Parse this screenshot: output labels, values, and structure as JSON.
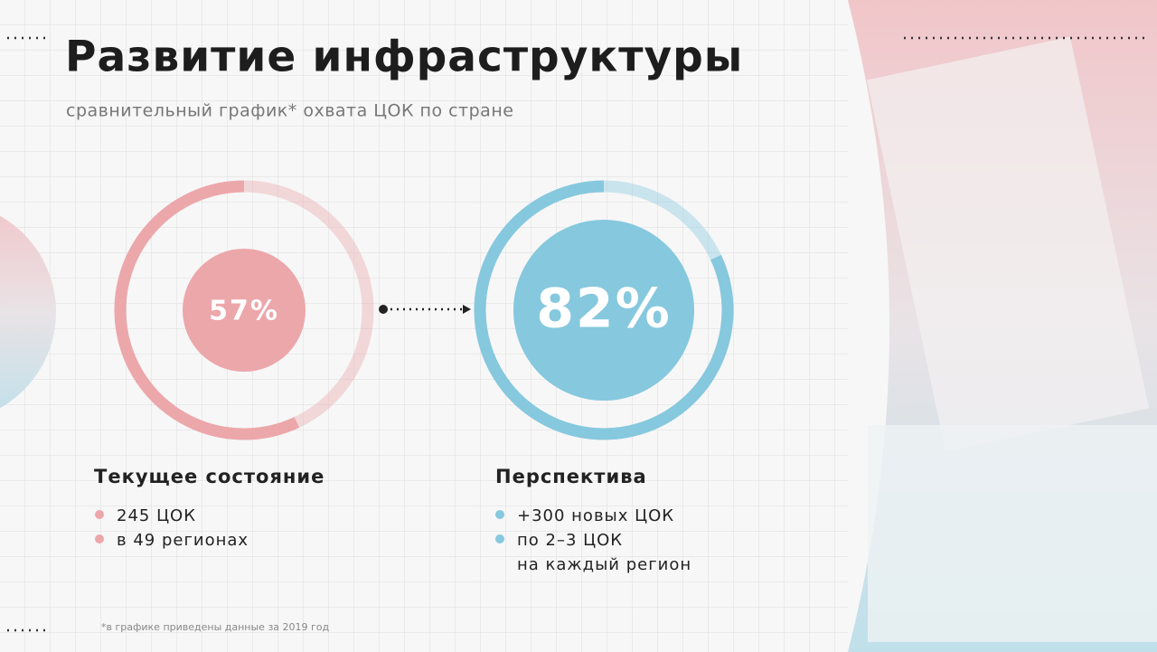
{
  "title": "Развитие инфраструктуры",
  "subtitle": "сравнительный график* охвата ЦОК по стране",
  "chart_data": [
    {
      "type": "donut",
      "values": [
        57
      ],
      "value_labels": [
        "57%"
      ],
      "ylim": [
        0,
        100
      ],
      "color": "#eca7ab",
      "heading": "Текущее состояние",
      "items": [
        "245 ЦОК",
        "в 49 регионах"
      ]
    },
    {
      "type": "donut",
      "values": [
        82
      ],
      "value_labels": [
        "82%"
      ],
      "ylim": [
        0,
        100
      ],
      "color": "#86c8de",
      "heading": "Перспектива",
      "items": [
        "+300 новых ЦОК",
        "по 2–3 ЦОК\nна каждый регион"
      ]
    }
  ],
  "footnote": "*в графике приведены данные за 2019 год"
}
